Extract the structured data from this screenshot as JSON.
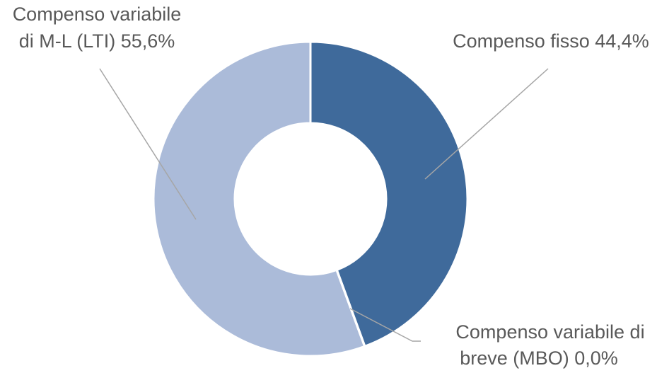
{
  "chart_data": {
    "type": "pie",
    "variant": "donut",
    "title": "",
    "legend": "none",
    "slice_border_color": "#ffffff",
    "leader_line_color": "#a6a6a6",
    "label_color": "#595959",
    "slices": [
      {
        "label_lines": [
          "Compenso fisso 44,4%"
        ],
        "category": "Compenso fisso",
        "value": 44.4,
        "value_label": "44,4%",
        "color": "#3f6a9b"
      },
      {
        "label_lines": [
          "Compenso variabile di",
          "breve (MBO) 0,0%"
        ],
        "category": "Compenso variabile di breve (MBO)",
        "value": 0.0,
        "value_label": "0,0%",
        "color": "#6b8cc0"
      },
      {
        "label_lines": [
          "Compenso variabile",
          "di M-L (LTI) 55,6%"
        ],
        "category": "Compenso variabile di M-L (LTI)",
        "value": 55.6,
        "value_label": "55,6%",
        "color": "#abbbd9"
      }
    ]
  }
}
